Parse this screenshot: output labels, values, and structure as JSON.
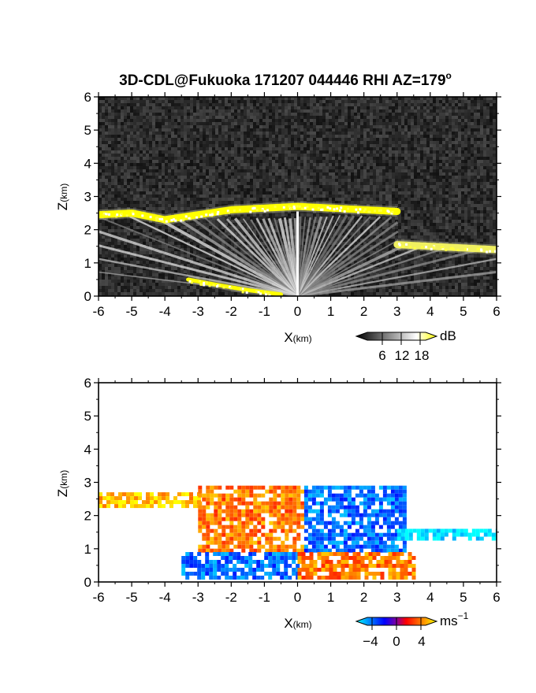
{
  "chart_data": [
    {
      "type": "heatmap",
      "title": "3D-CDL@Fukuoka 171207 044446 RHI AZ=179",
      "title_sup": "o",
      "xlabel_main": "X",
      "xlabel_unit": "(km)",
      "ylabel_main": "Z",
      "ylabel_unit": "(km)",
      "xlim": [
        -6,
        6
      ],
      "ylim": [
        0,
        6
      ],
      "x_ticks": [
        "-6",
        "-5",
        "-4",
        "-3",
        "-2",
        "-1",
        "0",
        "1",
        "2",
        "3",
        "4",
        "5",
        "6"
      ],
      "y_ticks": [
        "0",
        "1",
        "2",
        "3",
        "4",
        "5",
        "6"
      ],
      "variable": "backscatter intensity",
      "colorbar": {
        "unit": "dB",
        "ticks": [
          "6",
          "12",
          "18"
        ],
        "range": [
          0,
          20
        ],
        "colors": [
          "#000000",
          "#ffffff",
          "#ffff00"
        ]
      },
      "features": [
        {
          "kind": "cloud-layer",
          "x": [
            -6.0,
            -5.0,
            -4.0,
            -3.0,
            -2.0,
            -1.0,
            0.0,
            1.0,
            2.0,
            3.0
          ],
          "z": [
            2.45,
            2.5,
            2.3,
            2.45,
            2.6,
            2.65,
            2.7,
            2.65,
            2.6,
            2.55
          ],
          "intensity_db": 19
        },
        {
          "kind": "cloud-layer",
          "x": [
            3.0,
            4.0,
            5.0,
            6.0
          ],
          "z": [
            1.55,
            1.5,
            1.45,
            1.4
          ],
          "intensity_db": 17
        },
        {
          "kind": "near-surface-layer",
          "x": [
            -3.3,
            -2.5,
            -1.5,
            -0.5
          ],
          "z": [
            0.5,
            0.35,
            0.18,
            0.05
          ],
          "intensity_db": 19
        }
      ]
    },
    {
      "type": "heatmap",
      "xlabel_main": "X",
      "xlabel_unit": "(km)",
      "ylabel_main": "Z",
      "ylabel_unit": "(km)",
      "xlim": [
        -6,
        6
      ],
      "ylim": [
        0,
        6
      ],
      "x_ticks": [
        "-6",
        "-5",
        "-4",
        "-3",
        "-2",
        "-1",
        "0",
        "1",
        "2",
        "3",
        "4",
        "5",
        "6"
      ],
      "y_ticks": [
        "0",
        "1",
        "2",
        "3",
        "4",
        "5",
        "6"
      ],
      "variable": "radial velocity",
      "colorbar": {
        "unit_main": "ms",
        "unit_sup": "−1",
        "ticks": [
          "−4",
          "0",
          "4"
        ],
        "range": [
          -5,
          5
        ],
        "colors": [
          "#00ffff",
          "#0000ff",
          "#ff0000",
          "#ffff00"
        ]
      },
      "features": [
        {
          "kind": "velocity-region",
          "x": [
            -6.0,
            -3.0
          ],
          "z": [
            2.3,
            2.7
          ],
          "velocity_ms": 4
        },
        {
          "kind": "velocity-region",
          "x": [
            -3.0,
            0.2
          ],
          "z": [
            1.0,
            2.9
          ],
          "velocity_ms": 3
        },
        {
          "kind": "velocity-region",
          "x": [
            0.2,
            3.2
          ],
          "z": [
            1.0,
            2.9
          ],
          "velocity_ms": -3
        },
        {
          "kind": "velocity-region",
          "x": [
            3.0,
            6.0
          ],
          "z": [
            1.3,
            1.6
          ],
          "velocity_ms": -5
        },
        {
          "kind": "velocity-region",
          "x": [
            -3.5,
            0.0
          ],
          "z": [
            0.1,
            0.9
          ],
          "velocity_ms": -3
        },
        {
          "kind": "velocity-region",
          "x": [
            0.0,
            3.5
          ],
          "z": [
            0.1,
            0.9
          ],
          "velocity_ms": 3
        }
      ]
    }
  ]
}
